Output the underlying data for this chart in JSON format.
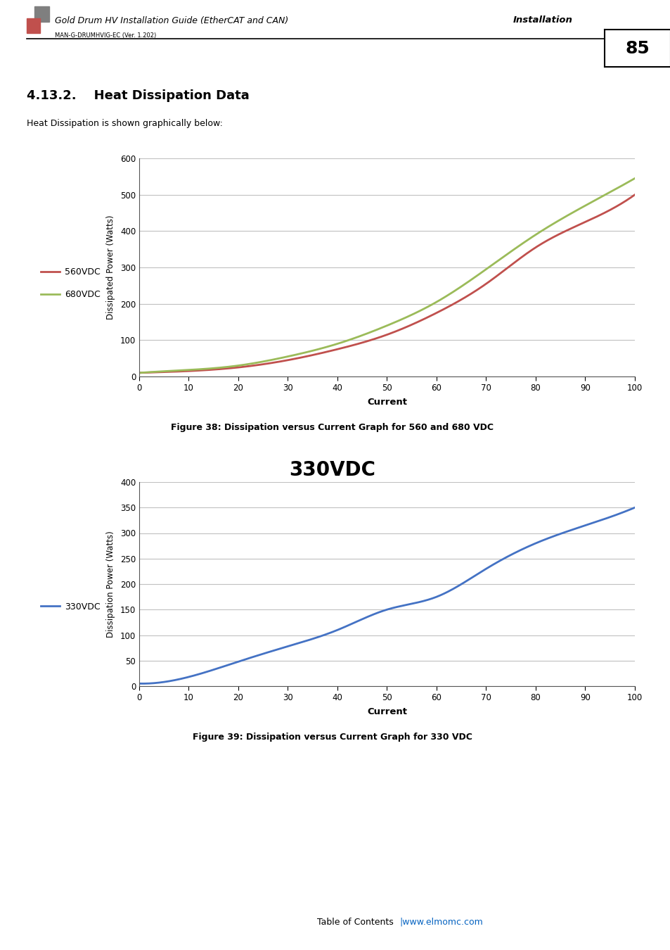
{
  "page_title": "Gold Drum HV Installation Guide (EtherCAT and CAN)",
  "page_section": "Installation",
  "page_number": "85",
  "version": "MAN-G-DRUMHVIG-EC (Ver. 1.202)",
  "section_title": "4.13.2.    Heat Dissipation Data",
  "intro_text": "Heat Dissipation is shown graphically below:",
  "chart1": {
    "xlabel": "Current",
    "ylabel": "Dissipated Power (Watts)",
    "xlim": [
      0,
      100
    ],
    "ylim": [
      0,
      600
    ],
    "xticks": [
      0,
      10,
      20,
      30,
      40,
      50,
      60,
      70,
      80,
      90,
      100
    ],
    "yticks": [
      0,
      100,
      200,
      300,
      400,
      500,
      600
    ],
    "series": [
      {
        "label": "560VDC",
        "color": "#c0504d",
        "x": [
          0,
          10,
          20,
          30,
          40,
          50,
          60,
          70,
          80,
          90,
          100
        ],
        "y": [
          10,
          15,
          25,
          45,
          75,
          115,
          175,
          255,
          355,
          425,
          500
        ]
      },
      {
        "label": "680VDC",
        "color": "#9bbb59",
        "x": [
          0,
          10,
          20,
          30,
          40,
          50,
          60,
          70,
          80,
          90,
          100
        ],
        "y": [
          10,
          18,
          30,
          55,
          90,
          140,
          205,
          295,
          390,
          470,
          545
        ]
      }
    ],
    "caption": "Figure 38: Dissipation versus Current Graph for 560 and 680 VDC"
  },
  "chart2": {
    "title": "330VDC",
    "xlabel": "Current",
    "ylabel": "Dissipation Power (Watts)",
    "xlim": [
      0,
      100
    ],
    "ylim": [
      0,
      400
    ],
    "xticks": [
      0,
      10,
      20,
      30,
      40,
      50,
      60,
      70,
      80,
      90,
      100
    ],
    "yticks": [
      0,
      50,
      100,
      150,
      200,
      250,
      300,
      350,
      400
    ],
    "series": [
      {
        "label": "330VDC",
        "color": "#4472c4",
        "x": [
          0,
          10,
          20,
          30,
          40,
          50,
          60,
          70,
          80,
          90,
          100
        ],
        "y": [
          5,
          18,
          48,
          78,
          110,
          150,
          175,
          230,
          280,
          315,
          350
        ]
      }
    ],
    "caption": "Figure 39: Dissipation versus Current Graph for 330 VDC"
  },
  "footer_text": "Table of Contents",
  "footer_link": "|www.elmomc.com",
  "bg_color": "#ffffff",
  "chart_bg": "#ffffff",
  "grid_color": "#c0c0c0",
  "border_color": "#888888"
}
